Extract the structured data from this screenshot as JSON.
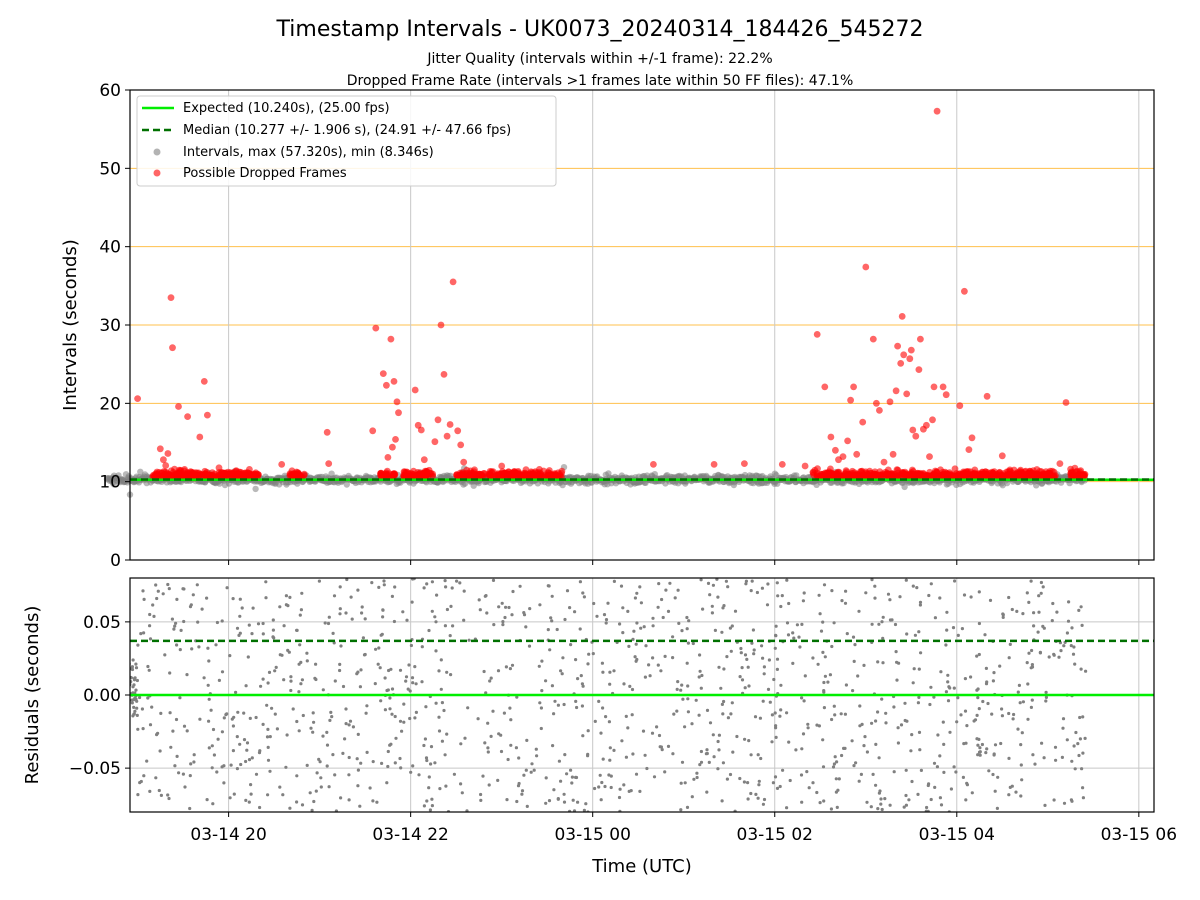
{
  "title": "Timestamp Intervals - UK0073_20240314_184426_545272",
  "subtitle_1": "Jitter Quality (intervals within +/-1 frame): 22.2%",
  "subtitle_2": "Dropped Frame Rate (intervals >1 frames late within 50 FF files): 47.1%",
  "colors": {
    "expected": "#00ee00",
    "median": "#007000",
    "intervals": "#808080",
    "dropped": "#ff0000",
    "hgrid_top": "#ffc04d",
    "grid": "#c8c8c8"
  },
  "chart_data": [
    {
      "type": "scatter",
      "panel": "intervals",
      "ylabel": "Intervals (seconds)",
      "xlim": [
        "2024-03-14 18:55",
        "2024-03-15 06:10"
      ],
      "ylim": [
        0,
        60
      ],
      "yticks": [
        0,
        10,
        20,
        30,
        40,
        50,
        60
      ],
      "grid": "vertical at x ticks; orange horizontal at y ticks",
      "legend_position": "upper-left",
      "legend": [
        "Expected (10.240s), (25.00 fps)",
        "Median (10.277 +/- 1.906 s), (24.91 +/- 47.66 fps)",
        "Intervals, max (57.320s), min (8.346s)",
        "Possible Dropped Frames"
      ],
      "expected_line": 10.24,
      "median_line": 10.277,
      "intervals_min": 8.346,
      "intervals_max": 57.32,
      "observation_start": "2024-03-14 18:40",
      "observation_end": "2024-03-15 05:25",
      "dense_band_intervals": [
        9.8,
        10.8
      ],
      "dropped_frame_bursts": [
        {
          "start": "2024-03-14 19:10",
          "end": "2024-03-14 20:20"
        },
        {
          "start": "2024-03-14 20:40",
          "end": "2024-03-14 20:50"
        },
        {
          "start": "2024-03-14 21:40",
          "end": "2024-03-14 21:50"
        },
        {
          "start": "2024-03-14 21:55",
          "end": "2024-03-14 22:15"
        },
        {
          "start": "2024-03-14 22:30",
          "end": "2024-03-14 23:40"
        },
        {
          "start": "2024-03-15 02:25",
          "end": "2024-03-15 05:05"
        },
        {
          "start": "2024-03-15 05:15",
          "end": "2024-03-15 05:25"
        }
      ],
      "dropped_outliers": [
        {
          "x": "2024-03-14 19:00",
          "y": 20.6
        },
        {
          "x": "2024-03-14 19:15",
          "y": 14.2
        },
        {
          "x": "2024-03-14 19:17",
          "y": 12.8
        },
        {
          "x": "2024-03-14 19:20",
          "y": 13.6
        },
        {
          "x": "2024-03-14 19:22",
          "y": 33.5
        },
        {
          "x": "2024-03-14 19:23",
          "y": 27.1
        },
        {
          "x": "2024-03-14 19:27",
          "y": 19.6
        },
        {
          "x": "2024-03-14 19:33",
          "y": 18.3
        },
        {
          "x": "2024-03-14 19:41",
          "y": 15.7
        },
        {
          "x": "2024-03-14 19:44",
          "y": 22.8
        },
        {
          "x": "2024-03-14 19:46",
          "y": 18.5
        },
        {
          "x": "2024-03-14 20:05",
          "y": 11.4
        },
        {
          "x": "2024-03-14 20:35",
          "y": 12.2
        },
        {
          "x": "2024-03-14 21:05",
          "y": 16.3
        },
        {
          "x": "2024-03-14 21:06",
          "y": 12.3
        },
        {
          "x": "2024-03-14 21:35",
          "y": 16.5
        },
        {
          "x": "2024-03-14 21:37",
          "y": 29.6
        },
        {
          "x": "2024-03-14 21:42",
          "y": 23.8
        },
        {
          "x": "2024-03-14 21:44",
          "y": 22.3
        },
        {
          "x": "2024-03-14 21:47",
          "y": 28.2
        },
        {
          "x": "2024-03-14 21:49",
          "y": 22.8
        },
        {
          "x": "2024-03-14 21:51",
          "y": 20.2
        },
        {
          "x": "2024-03-14 21:52",
          "y": 18.8
        },
        {
          "x": "2024-03-14 21:50",
          "y": 15.4
        },
        {
          "x": "2024-03-14 21:48",
          "y": 14.4
        },
        {
          "x": "2024-03-14 21:45",
          "y": 13.1
        },
        {
          "x": "2024-03-14 22:03",
          "y": 21.7
        },
        {
          "x": "2024-03-14 22:05",
          "y": 17.2
        },
        {
          "x": "2024-03-14 22:07",
          "y": 16.6
        },
        {
          "x": "2024-03-14 22:09",
          "y": 12.8
        },
        {
          "x": "2024-03-14 22:16",
          "y": 15.1
        },
        {
          "x": "2024-03-14 22:18",
          "y": 17.9
        },
        {
          "x": "2024-03-14 22:20",
          "y": 30.0
        },
        {
          "x": "2024-03-14 22:22",
          "y": 23.7
        },
        {
          "x": "2024-03-14 22:24",
          "y": 15.8
        },
        {
          "x": "2024-03-14 22:26",
          "y": 17.3
        },
        {
          "x": "2024-03-14 22:28",
          "y": 35.5
        },
        {
          "x": "2024-03-14 22:31",
          "y": 16.5
        },
        {
          "x": "2024-03-14 22:33",
          "y": 14.7
        },
        {
          "x": "2024-03-14 22:35",
          "y": 12.5
        },
        {
          "x": "2024-03-14 23:00",
          "y": 12.0
        },
        {
          "x": "2024-03-15 00:40",
          "y": 12.2
        },
        {
          "x": "2024-03-15 01:20",
          "y": 12.2
        },
        {
          "x": "2024-03-15 01:40",
          "y": 12.3
        },
        {
          "x": "2024-03-15 02:05",
          "y": 12.2
        },
        {
          "x": "2024-03-15 02:20",
          "y": 12.0
        },
        {
          "x": "2024-03-15 02:28",
          "y": 28.8
        },
        {
          "x": "2024-03-15 02:33",
          "y": 22.1
        },
        {
          "x": "2024-03-15 02:37",
          "y": 15.7
        },
        {
          "x": "2024-03-15 02:40",
          "y": 14.0
        },
        {
          "x": "2024-03-15 02:42",
          "y": 12.8
        },
        {
          "x": "2024-03-15 02:45",
          "y": 13.2
        },
        {
          "x": "2024-03-15 02:48",
          "y": 15.2
        },
        {
          "x": "2024-03-15 02:50",
          "y": 20.4
        },
        {
          "x": "2024-03-15 02:52",
          "y": 22.1
        },
        {
          "x": "2024-03-15 02:54",
          "y": 13.5
        },
        {
          "x": "2024-03-15 02:58",
          "y": 17.6
        },
        {
          "x": "2024-03-15 03:00",
          "y": 37.4
        },
        {
          "x": "2024-03-15 03:05",
          "y": 28.2
        },
        {
          "x": "2024-03-15 03:07",
          "y": 20.0
        },
        {
          "x": "2024-03-15 03:09",
          "y": 19.1
        },
        {
          "x": "2024-03-15 03:12",
          "y": 12.5
        },
        {
          "x": "2024-03-15 03:16",
          "y": 20.2
        },
        {
          "x": "2024-03-15 03:18",
          "y": 13.5
        },
        {
          "x": "2024-03-15 03:20",
          "y": 21.6
        },
        {
          "x": "2024-03-15 03:21",
          "y": 27.3
        },
        {
          "x": "2024-03-15 03:23",
          "y": 25.1
        },
        {
          "x": "2024-03-15 03:24",
          "y": 31.1
        },
        {
          "x": "2024-03-15 03:25",
          "y": 26.2
        },
        {
          "x": "2024-03-15 03:27",
          "y": 21.2
        },
        {
          "x": "2024-03-15 03:29",
          "y": 25.7
        },
        {
          "x": "2024-03-15 03:30",
          "y": 26.8
        },
        {
          "x": "2024-03-15 03:31",
          "y": 16.6
        },
        {
          "x": "2024-03-15 03:33",
          "y": 15.8
        },
        {
          "x": "2024-03-15 03:35",
          "y": 24.3
        },
        {
          "x": "2024-03-15 03:36",
          "y": 28.2
        },
        {
          "x": "2024-03-15 03:38",
          "y": 16.7
        },
        {
          "x": "2024-03-15 03:40",
          "y": 17.2
        },
        {
          "x": "2024-03-15 03:42",
          "y": 13.2
        },
        {
          "x": "2024-03-15 03:44",
          "y": 17.9
        },
        {
          "x": "2024-03-15 03:45",
          "y": 22.1
        },
        {
          "x": "2024-03-15 03:47",
          "y": 57.3
        },
        {
          "x": "2024-03-15 03:51",
          "y": 22.1
        },
        {
          "x": "2024-03-15 03:53",
          "y": 21.1
        },
        {
          "x": "2024-03-15 04:02",
          "y": 19.7
        },
        {
          "x": "2024-03-15 04:05",
          "y": 34.3
        },
        {
          "x": "2024-03-15 04:08",
          "y": 14.1
        },
        {
          "x": "2024-03-15 04:10",
          "y": 15.6
        },
        {
          "x": "2024-03-15 04:20",
          "y": 20.9
        },
        {
          "x": "2024-03-15 04:30",
          "y": 13.3
        },
        {
          "x": "2024-03-15 04:35",
          "y": 11.5
        },
        {
          "x": "2024-03-15 05:08",
          "y": 12.3
        },
        {
          "x": "2024-03-15 05:12",
          "y": 20.1
        },
        {
          "x": "2024-03-15 05:15",
          "y": 11.6
        }
      ]
    },
    {
      "type": "scatter",
      "panel": "residuals",
      "ylabel": "Residuals (seconds)",
      "xlabel": "Time (UTC)",
      "xlim": [
        "2024-03-14 18:55",
        "2024-03-15 06:10"
      ],
      "ylim": [
        -0.08,
        0.08
      ],
      "yticks": [
        -0.05,
        0.0,
        0.05
      ],
      "ytick_labels": [
        "−0.05",
        "0.00",
        "0.05"
      ],
      "xtick_labels": [
        "03-14 20",
        "03-14 22",
        "03-15 00",
        "03-15 02",
        "03-15 04",
        "03-15 06"
      ],
      "grid": "on",
      "zero_line": 0.0,
      "median_residual_line": 0.037,
      "cluster_near_zero": {
        "start": "2024-03-14 18:40",
        "end": "2024-03-14 19:00",
        "y_range": [
          -0.015,
          0.025
        ]
      },
      "spread": [
        -0.08,
        0.08
      ]
    }
  ]
}
